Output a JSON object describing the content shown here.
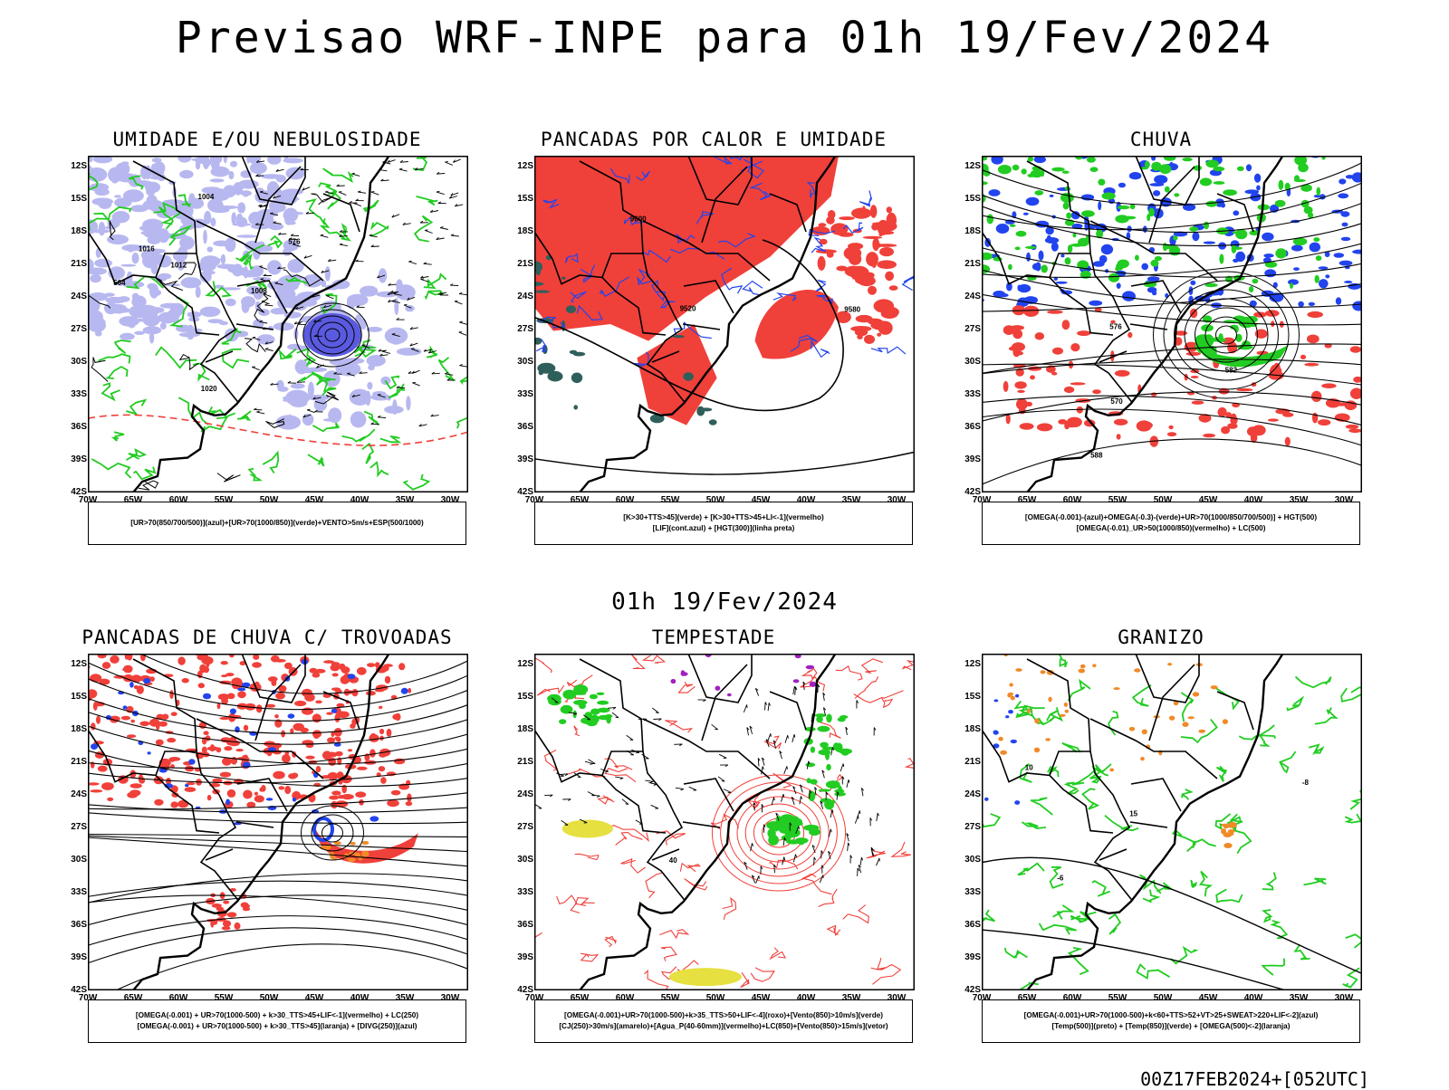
{
  "title": "Previsao WRF-INPE  para 01h 19/Fev/2024",
  "subtitle": "01h 19/Fev/2024",
  "footer": "00Z17FEB2024+[052UTC]",
  "lat_labels": [
    "12S",
    "15S",
    "18S",
    "21S",
    "24S",
    "27S",
    "30S",
    "33S",
    "36S",
    "39S",
    "42S"
  ],
  "lon_labels": [
    "70W",
    "65W",
    "60W",
    "55W",
    "50W",
    "45W",
    "40W",
    "35W",
    "30W"
  ],
  "panels": [
    {
      "id": "umidade",
      "title": "UMIDADE E/OU NEBULOSIDADE",
      "legend": [
        "[UR>70(850/700/500)](azul)+[UR>70(1000/850)](verde)+VENTO>5m/s+ESP(500/1000)"
      ],
      "contour_labels": [
        "1012",
        "1016",
        "1008",
        "1004",
        "1020",
        "576",
        "564"
      ]
    },
    {
      "id": "pancadas-calor",
      "title": "PANCADAS POR CALOR E UMIDADE",
      "legend": [
        "[K>30+TTS>45](verde)  +  [K>30+TTS>45+LI<-1](vermelho)",
        "[LIF](cont.azul)  +  [HGT(300)](linha preta)"
      ],
      "contour_labels": [
        "9600",
        "9580",
        "9520"
      ]
    },
    {
      "id": "chuva",
      "title": "CHUVA",
      "legend": [
        "[OMEGA(-0.001)-(azul)+OMEGA(-0.3)-(verde)+UR>70(1000/850/700/500)]  +  HGT(500)",
        "[OMEGA(-0.01)_UR>50(1000/850)(vermelho)  +  LC(500)"
      ],
      "contour_labels": [
        "588",
        "582",
        "576",
        "570"
      ]
    },
    {
      "id": "trovoadas",
      "title": "PANCADAS DE CHUVA C/ TROVOADAS",
      "legend": [
        "[OMEGA(-0.001)  +  UR>70(1000-500)  +  k>30_TTS>45+LIF<-1](vermelho)  +  LC(250)",
        "[OMEGA(-0.001)  +  UR>70(1000-500)  +  k>30_TTS>45](laranja)  +  [DIVG(250)](azul)"
      ],
      "contour_labels": []
    },
    {
      "id": "tempestade",
      "title": "TEMPESTADE",
      "legend": [
        "[OMEGA(-0.001)+UR>70(1000-500)+k>35_TTS>50+LIF<-4](roxo)+[Vento(850)>10m/s](verde)",
        "[CJ(250)>30m/s](amarelo)+[Agua_P(40-60mm)](vermelho)+LC(850)+[Vento(850)>15m/s](vetor)"
      ],
      "contour_labels": [
        "40"
      ]
    },
    {
      "id": "granizo",
      "title": "GRANIZO",
      "legend": [
        "[OMEGA(-0.001)+UR>70(1000-500)+k<60+TTS>52+VT>25+SWEAT>220+LIF<-2](azul)",
        "[Temp(500)](preto)  +  [Temp(850)](verde)  +  [OMEGA(500)<-2](laranja)"
      ],
      "contour_labels": [
        "15",
        "10",
        "-6",
        "-8"
      ]
    }
  ],
  "colors": {
    "red": "#f0403a",
    "green": "#22cc22",
    "blue": "#2244ee",
    "lavender": "#b8b8f0",
    "darkteal": "#2f5f5a",
    "yellow": "#e6e040",
    "orange": "#f08a28",
    "purple": "#a020c0"
  }
}
